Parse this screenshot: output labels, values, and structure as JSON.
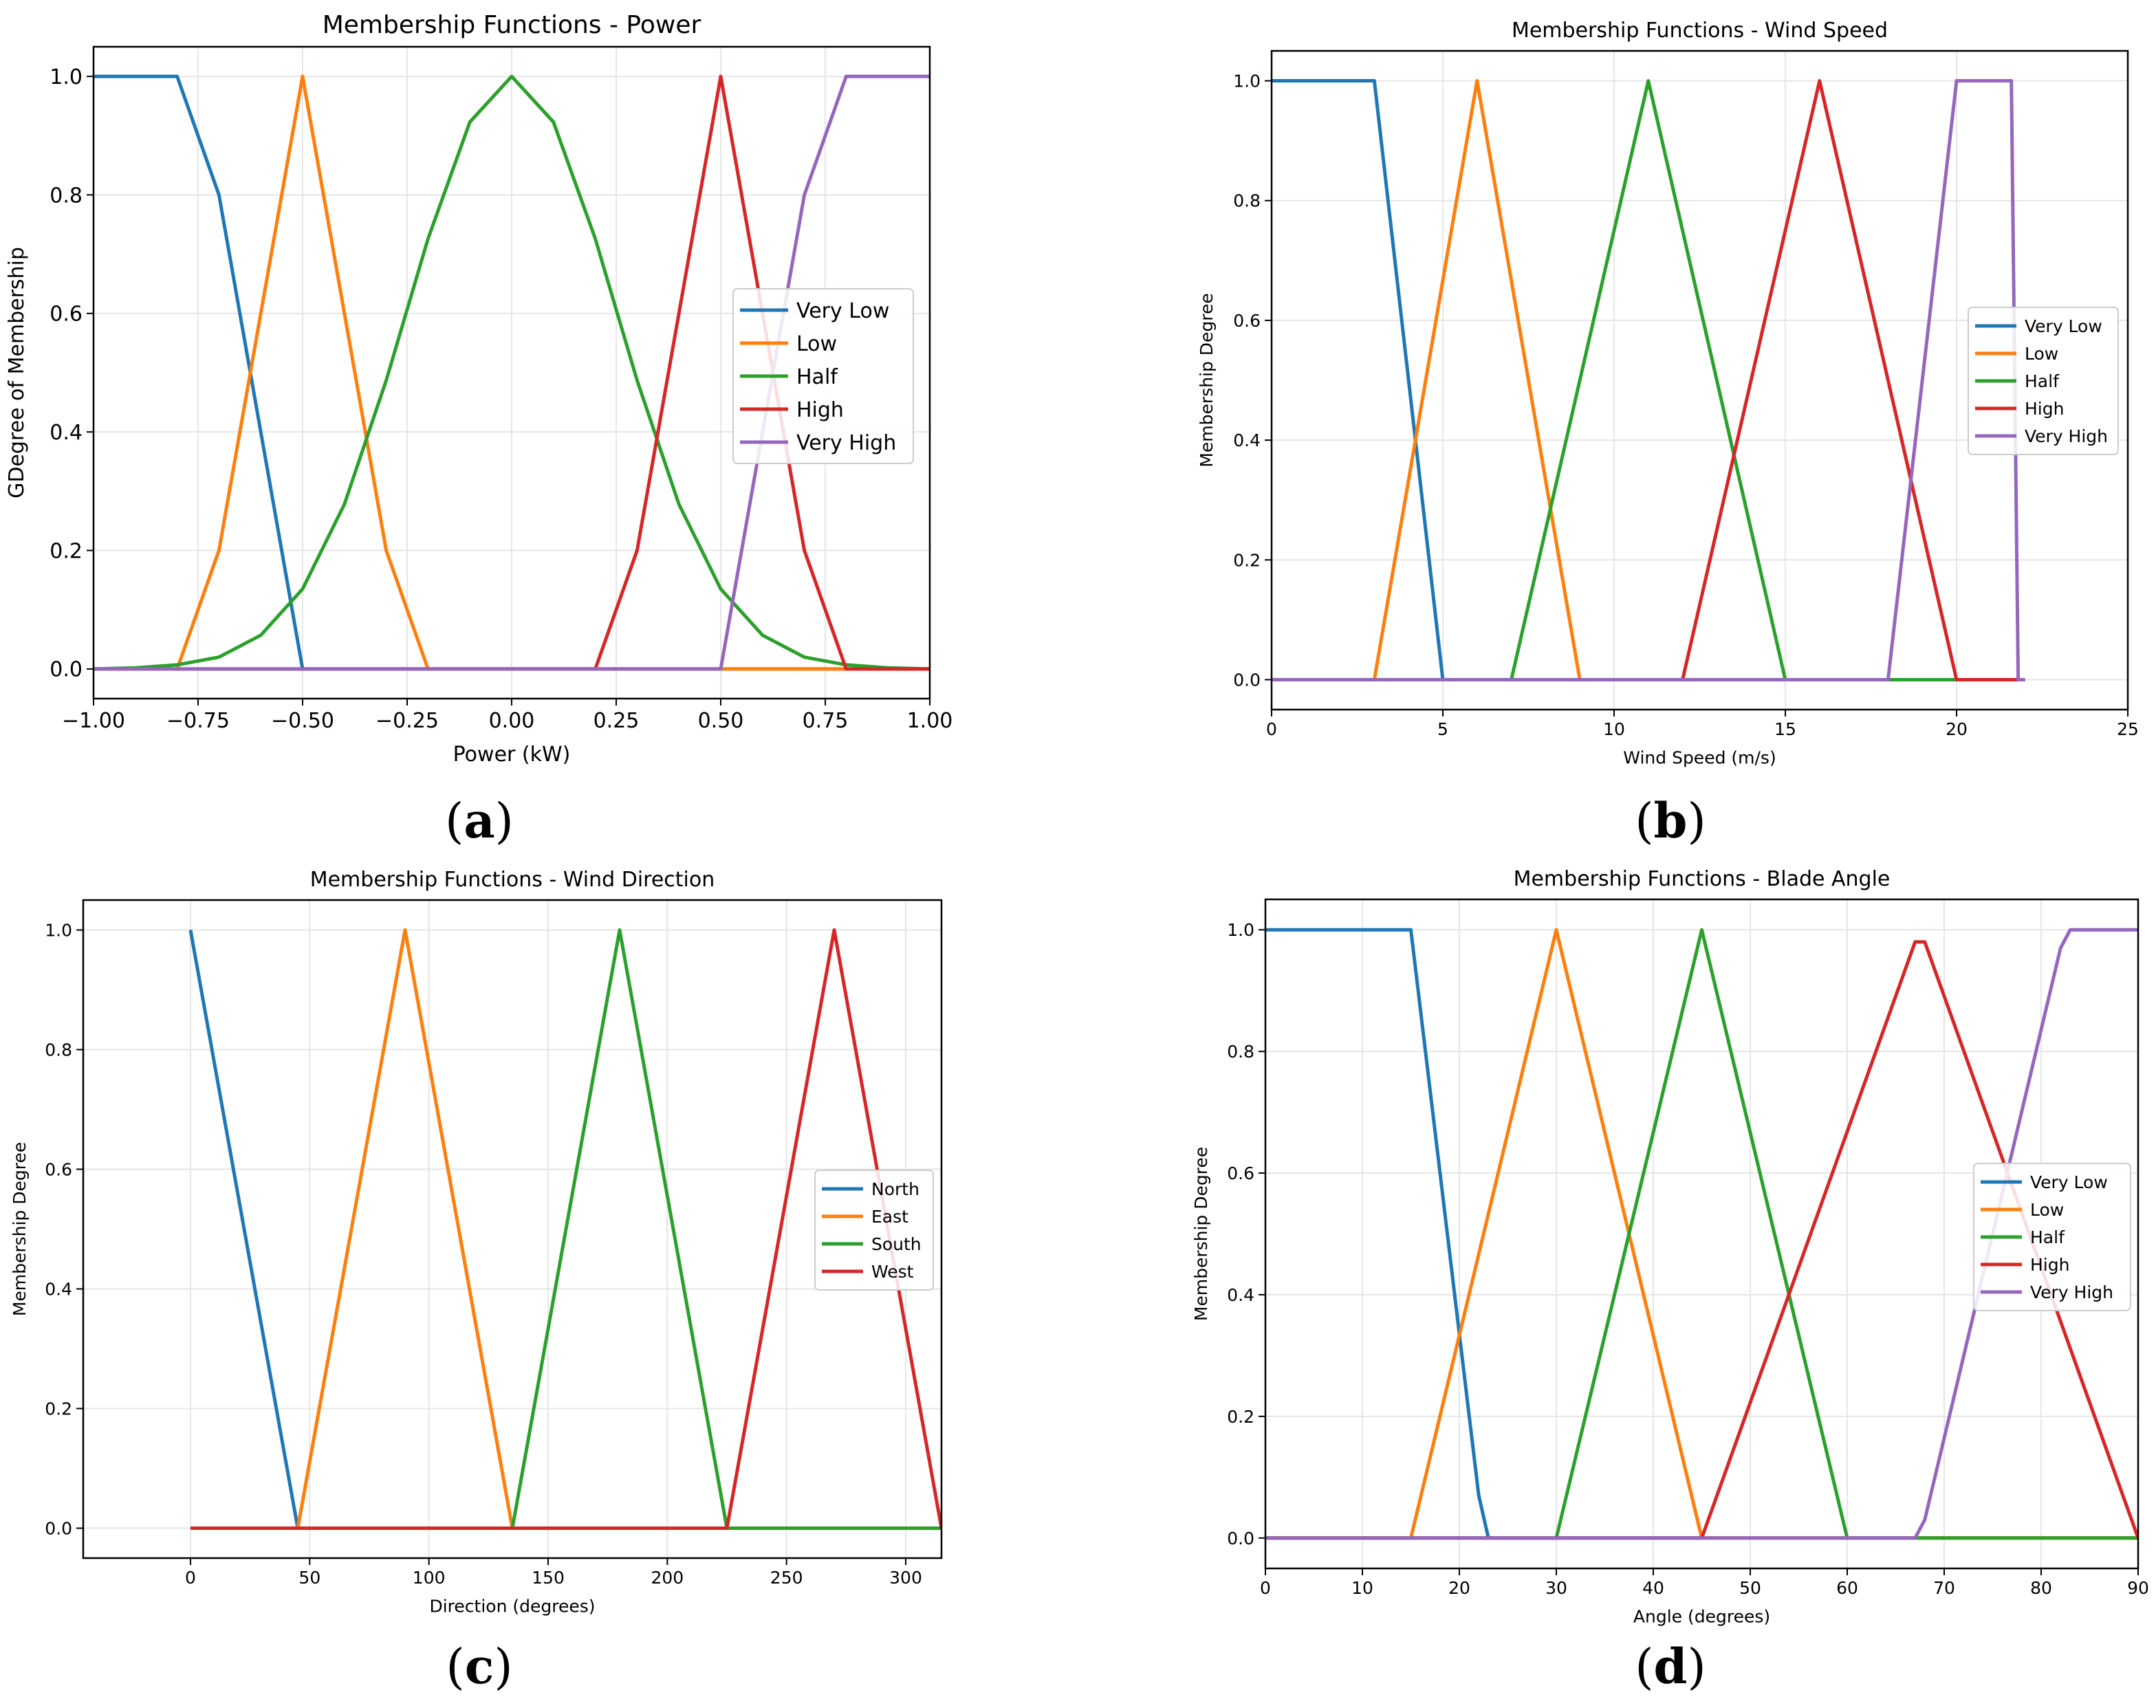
{
  "colors": {
    "blue": "#1f77b4",
    "orange": "#ff7f0e",
    "green": "#2ca02c",
    "red": "#d62728",
    "purple": "#9467bd",
    "grid": "#e6e6e6",
    "axis": "#000000"
  },
  "panel_labels": [
    "(a)",
    "(b)",
    "(c)",
    "(d)"
  ],
  "chart_data": [
    {
      "type": "line",
      "title": "Membership Functions - Power",
      "xlabel": "Power (kW)",
      "ylabel": "GDegree of Membership",
      "xlim": [
        -1.0,
        1.0
      ],
      "ylim": [
        -0.05,
        1.05
      ],
      "xticks": [
        -1.0,
        -0.75,
        -0.5,
        -0.25,
        0.0,
        0.25,
        0.5,
        0.75,
        1.0
      ],
      "xtick_labels": [
        "−1.00",
        "−0.75",
        "−0.50",
        "−0.25",
        "0.00",
        "0.25",
        "0.50",
        "0.75",
        "1.00"
      ],
      "yticks": [
        0.0,
        0.2,
        0.4,
        0.6,
        0.8,
        1.0
      ],
      "ytick_labels": [
        "0.0",
        "0.2",
        "0.4",
        "0.6",
        "0.8",
        "1.0"
      ],
      "grid": true,
      "legend_position": "center-right",
      "series": [
        {
          "name": "Very Low",
          "color": "#1f77b4",
          "x": [
            -1.0,
            -0.8,
            -0.7,
            -0.5,
            1.0
          ],
          "y": [
            1.0,
            1.0,
            0.8,
            0.0,
            0.0
          ]
        },
        {
          "name": "Low",
          "color": "#ff7f0e",
          "x": [
            -1.0,
            -0.8,
            -0.7,
            -0.5,
            -0.3,
            -0.2,
            1.0
          ],
          "y": [
            0.0,
            0.0,
            0.2,
            1.0,
            0.2,
            0.0,
            0.0
          ]
        },
        {
          "name": "Half",
          "color": "#2ca02c",
          "x": [
            -1.0,
            -0.9,
            -0.8,
            -0.7,
            -0.6,
            -0.5,
            -0.4,
            -0.3,
            -0.2,
            -0.1,
            0.0,
            0.1,
            0.2,
            0.3,
            0.4,
            0.5,
            0.6,
            0.7,
            0.8,
            0.9,
            1.0
          ],
          "y": [
            0.0,
            0.002,
            0.007,
            0.02,
            0.057,
            0.135,
            0.278,
            0.487,
            0.726,
            0.923,
            1.0,
            0.923,
            0.726,
            0.487,
            0.278,
            0.135,
            0.057,
            0.02,
            0.007,
            0.002,
            0.0
          ]
        },
        {
          "name": "High",
          "color": "#d62728",
          "x": [
            -1.0,
            0.2,
            0.3,
            0.5,
            0.7,
            0.8,
            1.0
          ],
          "y": [
            0.0,
            0.0,
            0.2,
            1.0,
            0.2,
            0.0,
            0.0
          ]
        },
        {
          "name": "Very High",
          "color": "#9467bd",
          "x": [
            -1.0,
            0.5,
            0.7,
            0.8,
            1.0
          ],
          "y": [
            0.0,
            0.0,
            0.8,
            1.0,
            1.0
          ]
        }
      ]
    },
    {
      "type": "line",
      "title": "Membership Functions - Wind Speed",
      "xlabel": "Wind Speed (m/s)",
      "ylabel": "Membership Degree",
      "xlim": [
        0,
        25
      ],
      "ylim": [
        -0.05,
        1.05
      ],
      "xticks": [
        0,
        5,
        10,
        15,
        20,
        25
      ],
      "xtick_labels": [
        "0",
        "5",
        "10",
        "15",
        "20",
        "25"
      ],
      "yticks": [
        0.0,
        0.2,
        0.4,
        0.6,
        0.8,
        1.0
      ],
      "ytick_labels": [
        "0.0",
        "0.2",
        "0.4",
        "0.6",
        "0.8",
        "1.0"
      ],
      "grid": true,
      "legend_position": "center-right",
      "series": [
        {
          "name": "Very Low",
          "color": "#1f77b4",
          "x": [
            0,
            3,
            5,
            22
          ],
          "y": [
            1.0,
            1.0,
            0.0,
            0.0
          ]
        },
        {
          "name": "Low",
          "color": "#ff7f0e",
          "x": [
            0,
            3,
            6,
            9,
            22
          ],
          "y": [
            0.0,
            0.0,
            1.0,
            0.0,
            0.0
          ]
        },
        {
          "name": "Half",
          "color": "#2ca02c",
          "x": [
            0,
            7,
            11,
            15,
            22
          ],
          "y": [
            0.0,
            0.0,
            1.0,
            0.0,
            0.0
          ]
        },
        {
          "name": "High",
          "color": "#d62728",
          "x": [
            0,
            12,
            16,
            20,
            21.8
          ],
          "y": [
            0.0,
            0.0,
            1.0,
            0.0,
            0.0
          ]
        },
        {
          "name": "Very High",
          "color": "#9467bd",
          "x": [
            0,
            18,
            20,
            21.6,
            21.8,
            22
          ],
          "y": [
            0.0,
            0.0,
            1.0,
            1.0,
            0.0,
            0.0
          ]
        }
      ]
    },
    {
      "type": "line",
      "title": "Membership Functions - Wind Direction",
      "xlabel": "Direction (degrees)",
      "ylabel": "Membership Degree",
      "xlim": [
        -45,
        315
      ],
      "ylim": [
        -0.05,
        1.05
      ],
      "xticks": [
        0,
        50,
        100,
        150,
        200,
        250,
        300
      ],
      "xtick_labels": [
        "0",
        "50",
        "100",
        "150",
        "200",
        "250",
        "300"
      ],
      "yticks": [
        0.0,
        0.2,
        0.4,
        0.6,
        0.8,
        1.0
      ],
      "ytick_labels": [
        "0.0",
        "0.2",
        "0.4",
        "0.6",
        "0.8",
        "1.0"
      ],
      "grid": true,
      "legend_position": "center-right",
      "series": [
        {
          "name": "North",
          "color": "#1f77b4",
          "x": [
            0,
            45
          ],
          "y": [
            1.0,
            0.0
          ]
        },
        {
          "name": "East",
          "color": "#ff7f0e",
          "x": [
            45,
            90,
            135
          ],
          "y": [
            0.0,
            1.0,
            0.0
          ]
        },
        {
          "name": "South",
          "color": "#2ca02c",
          "x": [
            135,
            180,
            225,
            315
          ],
          "y": [
            0.0,
            1.0,
            0.0,
            0.0
          ]
        },
        {
          "name": "West",
          "color": "#d62728",
          "x": [
            0,
            225,
            270,
            315
          ],
          "y": [
            0.0,
            0.0,
            1.0,
            0.0
          ]
        }
      ]
    },
    {
      "type": "line",
      "title": "Membership Functions - Blade Angle",
      "xlabel": "Angle (degrees)",
      "ylabel": "Membership Degree",
      "xlim": [
        0,
        90
      ],
      "ylim": [
        -0.05,
        1.05
      ],
      "xticks": [
        0,
        10,
        20,
        30,
        40,
        50,
        60,
        70,
        80,
        90
      ],
      "xtick_labels": [
        "0",
        "10",
        "20",
        "30",
        "40",
        "50",
        "60",
        "70",
        "80",
        "90"
      ],
      "yticks": [
        0.0,
        0.2,
        0.4,
        0.6,
        0.8,
        1.0
      ],
      "ytick_labels": [
        "0.0",
        "0.2",
        "0.4",
        "0.6",
        "0.8",
        "1.0"
      ],
      "grid": true,
      "legend_position": "center-right",
      "series": [
        {
          "name": "Very Low",
          "color": "#1f77b4",
          "x": [
            0,
            15,
            22,
            23,
            90
          ],
          "y": [
            1.0,
            1.0,
            0.07,
            0.0,
            0.0
          ]
        },
        {
          "name": "Low",
          "color": "#ff7f0e",
          "x": [
            0,
            15,
            30,
            45,
            90
          ],
          "y": [
            0.0,
            0.0,
            1.0,
            0.0,
            0.0
          ]
        },
        {
          "name": "Half",
          "color": "#2ca02c",
          "x": [
            0,
            30,
            45,
            60,
            90
          ],
          "y": [
            0.0,
            0.0,
            1.0,
            0.0,
            0.0
          ]
        },
        {
          "name": "High",
          "color": "#d62728",
          "x": [
            0,
            45,
            67,
            68,
            90
          ],
          "y": [
            0.0,
            0.0,
            0.98,
            0.98,
            0.0
          ]
        },
        {
          "name": "Very High",
          "color": "#9467bd",
          "x": [
            0,
            67,
            68,
            82,
            83,
            90
          ],
          "y": [
            0.0,
            0.0,
            0.03,
            0.97,
            1.0,
            1.0
          ]
        }
      ]
    }
  ]
}
